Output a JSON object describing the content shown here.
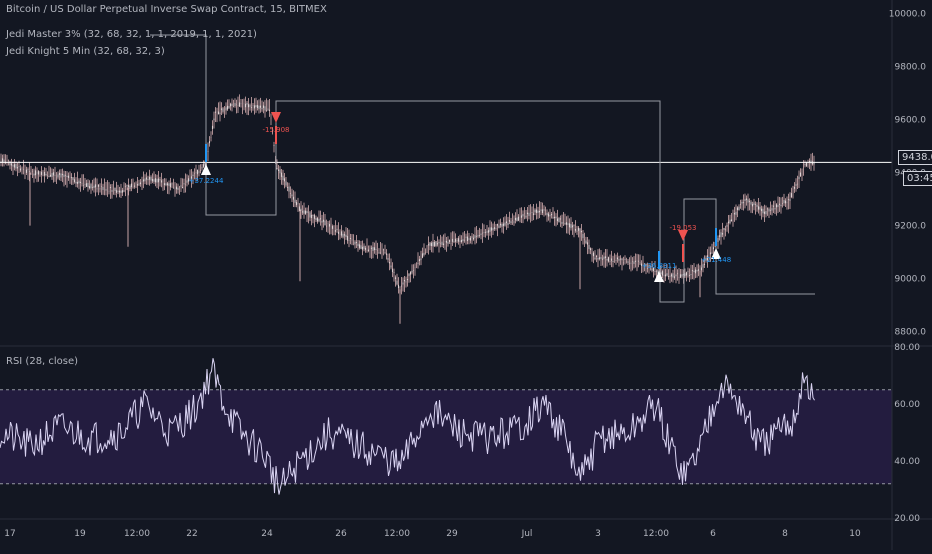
{
  "header": {
    "symbol_title": "Bitcoin / US Dollar Perpetual Inverse Swap Contract, 15, BITMEX",
    "indicator_1": "Jedi Master 3% (32, 68, 32, 1, 1, 2019, 1, 1, 2021)",
    "indicator_2": "Jedi Knight 5 Min (32, 68, 32, 3)"
  },
  "price_axis": {
    "labels": [
      "10000.0",
      "9800.0",
      "9600.0",
      "9400.0",
      "9200.0",
      "9000.0",
      "8800.0"
    ],
    "current_price": "9438.0",
    "countdown": "03:45"
  },
  "rsi_panel": {
    "title": "RSI (28, close)",
    "axis_labels": [
      "80.00",
      "60.00",
      "40.00",
      "20.00"
    ],
    "upper_band": 65,
    "lower_band": 32
  },
  "time_axis": {
    "labels": [
      "17",
      "19",
      "12:00",
      "22",
      "24",
      "26",
      "12:00",
      "29",
      "Jul",
      "3",
      "12:00",
      "6",
      "8",
      "10"
    ]
  },
  "signals": [
    {
      "kind": "buy",
      "text": "+37.2244"
    },
    {
      "kind": "sell",
      "text": "-15.908"
    },
    {
      "kind": "buy",
      "text": "+36.8311"
    },
    {
      "kind": "sell",
      "text": "-19.053"
    },
    {
      "kind": "buy",
      "text": "+21.448"
    }
  ],
  "colors": {
    "background": "#131722",
    "candle": "#f6c8c8",
    "price_line": "#ffffff",
    "rsi_line": "#d9d3f2",
    "rsi_band": "#2a1f4a",
    "buy": "#2196f3",
    "sell": "#ef5350",
    "grid_text": "#b2b5be"
  },
  "chart_data": {
    "type": "line",
    "title": "Bitcoin / US Dollar Perpetual Inverse Swap Contract, 15, BITMEX",
    "x": [
      "17",
      "19",
      "12:00",
      "22",
      "24",
      "26",
      "12:00",
      "29",
      "Jul",
      "3",
      "12:00",
      "6",
      "8",
      "10"
    ],
    "series": [
      {
        "name": "Bitcoin / US Dollar Perpetual Inverse Swap Contract",
        "values": [
          9450,
          9350,
          9360,
          9430,
          9280,
          9140,
          8960,
          9150,
          9230,
          9060,
          9030,
          9120,
          9260,
          9440
        ]
      },
      {
        "name": "RSI (28, close)",
        "values": [
          50,
          48,
          52,
          62,
          40,
          45,
          38,
          52,
          52,
          42,
          60,
          58,
          48,
          68
        ]
      }
    ],
    "ylim": [
      8750,
      10050
    ],
    "rsi_ylim": [
      20,
      80
    ],
    "grid": false,
    "legend": "top-left"
  }
}
